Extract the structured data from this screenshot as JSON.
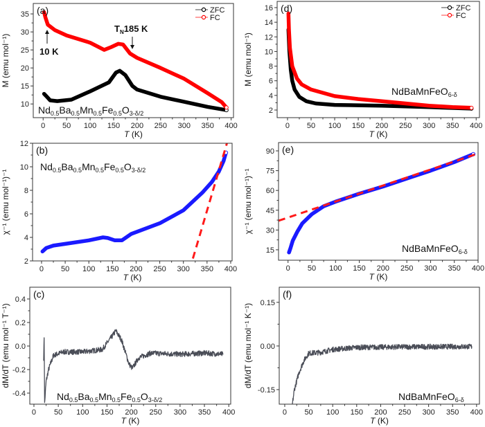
{
  "chart_data": [
    {
      "panel": "(a)",
      "type": "line",
      "xlabel": "T (K)",
      "ylabel": "M (emu mol⁻¹)",
      "xlim": [
        -21,
        405
      ],
      "ylim": [
        6.2,
        37.9
      ],
      "xticks": [
        0,
        50,
        100,
        150,
        200,
        250,
        300,
        350,
        400
      ],
      "yticks": [
        10,
        15,
        20,
        25,
        30,
        35
      ],
      "ydec": 0,
      "compound": [
        [
          "Nd",
          0
        ],
        [
          "0.5",
          1
        ],
        [
          "Ba",
          0
        ],
        [
          "0.5",
          1
        ],
        [
          "Mn",
          0
        ],
        [
          "0.5",
          1
        ],
        [
          "Fe",
          0
        ],
        [
          "0.5",
          1
        ],
        [
          "O",
          0
        ],
        [
          "3-δ/2",
          1
        ]
      ],
      "legend": [
        "ZFC",
        "FC"
      ],
      "annotations": [
        {
          "text": "10 K",
          "sub": "",
          "rest": ""
        },
        {
          "text": "T",
          "sub": "N",
          "rest": "185 K"
        }
      ],
      "series": [
        {
          "name": "ZFC",
          "color": "#000000",
          "style": "marker",
          "points": [
            [
              2,
              12.8
            ],
            [
              8,
              12
            ],
            [
              15,
              11
            ],
            [
              30,
              10.8
            ],
            [
              60,
              11.2
            ],
            [
              100,
              13.5
            ],
            [
              140,
              16
            ],
            [
              155,
              18.7
            ],
            [
              163,
              19.2
            ],
            [
              175,
              18
            ],
            [
              190,
              15
            ],
            [
              200,
              14
            ],
            [
              250,
              12
            ],
            [
              300,
              10.6
            ],
            [
              350,
              9.2
            ],
            [
              390,
              8.3
            ]
          ]
        },
        {
          "name": "FC",
          "color": "#ff0000",
          "style": "marker",
          "points": [
            [
              2,
              35.5
            ],
            [
              5,
              34
            ],
            [
              10,
              32
            ],
            [
              25,
              30.5
            ],
            [
              50,
              29
            ],
            [
              100,
              27
            ],
            [
              130,
              25
            ],
            [
              145,
              25.8
            ],
            [
              160,
              26.7
            ],
            [
              170,
              26.5
            ],
            [
              185,
              24
            ],
            [
              200,
              22.8
            ],
            [
              250,
              20
            ],
            [
              300,
              17
            ],
            [
              350,
              13
            ],
            [
              380,
              10.5
            ],
            [
              390,
              9
            ]
          ]
        }
      ]
    },
    {
      "panel": "(b)",
      "type": "line",
      "xlabel": "T (K)",
      "ylabel": "χ⁻¹ (emu mol⁻¹)⁻¹",
      "xlim": [
        -19,
        403
      ],
      "ylim": [
        2,
        12
      ],
      "xticks": [
        0,
        50,
        100,
        150,
        200,
        250,
        300,
        350,
        400
      ],
      "yticks": [
        2,
        4,
        6,
        8,
        10,
        12
      ],
      "ydec": 0,
      "compound": [
        [
          "Nd",
          0
        ],
        [
          "0.5",
          1
        ],
        [
          "Ba",
          0
        ],
        [
          "0.5",
          1
        ],
        [
          "Mn",
          0
        ],
        [
          "0.5",
          1
        ],
        [
          "Fe",
          0
        ],
        [
          "0.5",
          1
        ],
        [
          "O",
          0
        ],
        [
          "3-δ/2",
          1
        ]
      ],
      "series": [
        {
          "name": "inverse susceptibility",
          "color": "#1a1aff",
          "style": "marker",
          "points": [
            [
              2,
              2.8
            ],
            [
              10,
              3.1
            ],
            [
              25,
              3.3
            ],
            [
              50,
              3.45
            ],
            [
              100,
              3.75
            ],
            [
              130,
              4
            ],
            [
              140,
              3.95
            ],
            [
              155,
              3.75
            ],
            [
              170,
              3.75
            ],
            [
              190,
              4.3
            ],
            [
              250,
              5.2
            ],
            [
              300,
              6.3
            ],
            [
              340,
              7.8
            ],
            [
              360,
              8.7
            ],
            [
              375,
              9.6
            ],
            [
              385,
              10.5
            ],
            [
              390,
              11.2
            ]
          ]
        },
        {
          "name": "Curie-Weiss fit",
          "color": "#ff1a1a",
          "style": "dash",
          "points": [
            [
              320,
              2.2
            ],
            [
              392,
              12
            ]
          ]
        }
      ]
    },
    {
      "panel": "(c)",
      "type": "line",
      "xlabel": "T (K)",
      "ylabel": "dM/dT (emu mol⁻¹ T⁻¹)",
      "xlim": [
        -8.5,
        404
      ],
      "ylim": [
        -0.494,
        0.5
      ],
      "xticks": [
        0,
        50,
        100,
        150,
        200,
        250,
        300,
        350,
        400
      ],
      "yticks": [
        -0.4,
        -0.2,
        0.0,
        0.2,
        0.4
      ],
      "ydec": 1,
      "compound": [
        [
          "Nd",
          0
        ],
        [
          "0.5",
          1
        ],
        [
          "Ba",
          0
        ],
        [
          "0.5",
          1
        ],
        [
          "Mn",
          0
        ],
        [
          "0.5",
          1
        ],
        [
          "Fe",
          0
        ],
        [
          "0.5",
          1
        ],
        [
          "O",
          0
        ],
        [
          "3-δ/2",
          1
        ]
      ],
      "series": [
        {
          "name": "dM/dT",
          "color": "#4a4d57",
          "style": "noisy",
          "points": [
            [
              20,
              -0.1
            ],
            [
              21,
              0.08
            ],
            [
              22,
              -0.49
            ],
            [
              25,
              -0.3
            ],
            [
              30,
              -0.2
            ],
            [
              40,
              -0.08
            ],
            [
              60,
              -0.05
            ],
            [
              100,
              -0.05
            ],
            [
              140,
              -0.03
            ],
            [
              160,
              0.08
            ],
            [
              168,
              0.13
            ],
            [
              180,
              0.05
            ],
            [
              195,
              -0.15
            ],
            [
              202,
              -0.19
            ],
            [
              215,
              -0.1
            ],
            [
              240,
              -0.06
            ],
            [
              300,
              -0.07
            ],
            [
              350,
              -0.06
            ],
            [
              388,
              -0.07
            ]
          ]
        }
      ]
    },
    {
      "panel": "(d)",
      "type": "line",
      "xlabel": "T (K)",
      "ylabel": "M (emu mol⁻¹)",
      "xlim": [
        -22,
        407
      ],
      "ylim": [
        0.96,
        16.85
      ],
      "xticks": [
        0,
        50,
        100,
        150,
        200,
        250,
        300,
        350,
        400
      ],
      "yticks": [
        2,
        4,
        6,
        8,
        10,
        12,
        14,
        16
      ],
      "ydec": 0,
      "compound": [
        [
          "NdBaMnFeO",
          0
        ],
        [
          "6-δ",
          1
        ]
      ],
      "legend": [
        "ZFC",
        "FC"
      ],
      "series": [
        {
          "name": "ZFC",
          "color": "#000000",
          "style": "marker",
          "points": [
            [
              2,
              13
            ],
            [
              4,
              10
            ],
            [
              7,
              7.5
            ],
            [
              10,
              6
            ],
            [
              15,
              4.8
            ],
            [
              25,
              3.8
            ],
            [
              40,
              3.2
            ],
            [
              60,
              2.9
            ],
            [
              100,
              2.7
            ],
            [
              200,
              2.6
            ],
            [
              300,
              2.4
            ],
            [
              390,
              2.2
            ]
          ]
        },
        {
          "name": "FC",
          "color": "#ff0000",
          "style": "marker",
          "points": [
            [
              2,
              15.2
            ],
            [
              3,
              13
            ],
            [
              5,
              10.5
            ],
            [
              10,
              8
            ],
            [
              20,
              6.3
            ],
            [
              30,
              5.5
            ],
            [
              50,
              4.8
            ],
            [
              100,
              3.9
            ],
            [
              150,
              3.5
            ],
            [
              200,
              3.2
            ],
            [
              250,
              2.9
            ],
            [
              300,
              2.6
            ],
            [
              350,
              2.4
            ],
            [
              390,
              2.3
            ]
          ]
        }
      ]
    },
    {
      "panel": "(e)",
      "type": "line",
      "xlabel": "T (K)",
      "ylabel": "χ⁻¹ (emu mol⁻¹)⁻¹",
      "xlim": [
        -20,
        400
      ],
      "ylim": [
        7.1,
        96.3
      ],
      "xticks": [
        0,
        50,
        100,
        150,
        200,
        250,
        300,
        350,
        400
      ],
      "yticks": [
        15,
        30,
        45,
        60,
        75,
        90
      ],
      "ydec": 0,
      "compound": [
        [
          "NdBaMnFeO",
          0
        ],
        [
          "6-δ",
          1
        ]
      ],
      "series": [
        {
          "name": "inverse susceptibility",
          "color": "#1a1aff",
          "style": "marker",
          "points": [
            [
              2,
              13
            ],
            [
              5,
              16
            ],
            [
              10,
              22
            ],
            [
              20,
              29
            ],
            [
              30,
              35
            ],
            [
              50,
              42
            ],
            [
              75,
              48
            ],
            [
              100,
              51.5
            ],
            [
              150,
              57.5
            ],
            [
              200,
              63
            ],
            [
              250,
              69
            ],
            [
              300,
              75
            ],
            [
              350,
              81.5
            ],
            [
              390,
              87.5
            ]
          ]
        },
        {
          "name": "Curie-Weiss fit",
          "color": "#ff1a1a",
          "style": "dash",
          "points": [
            [
              -20,
              37
            ],
            [
              400,
              88
            ]
          ]
        }
      ]
    },
    {
      "panel": "(f)",
      "type": "line",
      "xlabel": "T (K)",
      "ylabel": "dM/dT (emu mol⁻¹ K⁻¹)",
      "xlim": [
        -11.5,
        406
      ],
      "ylim": [
        -0.2,
        0.202
      ],
      "xticks": [
        0,
        50,
        100,
        150,
        200,
        250,
        300,
        350,
        400
      ],
      "yticks": [
        -0.15,
        0.0,
        0.15
      ],
      "ydec": 2,
      "compound": [
        [
          "NdBaMnFeO",
          0
        ],
        [
          "6-δ",
          1
        ]
      ],
      "series": [
        {
          "name": "dM/dT",
          "color": "#4a4d57",
          "style": "noisy",
          "points": [
            [
              16,
              -0.2
            ],
            [
              20,
              -0.15
            ],
            [
              30,
              -0.09
            ],
            [
              40,
              -0.05
            ],
            [
              50,
              -0.025
            ],
            [
              75,
              -0.022
            ],
            [
              100,
              -0.012
            ],
            [
              150,
              -0.005
            ],
            [
              250,
              -0.003
            ],
            [
              390,
              -0.002
            ]
          ]
        }
      ]
    }
  ]
}
